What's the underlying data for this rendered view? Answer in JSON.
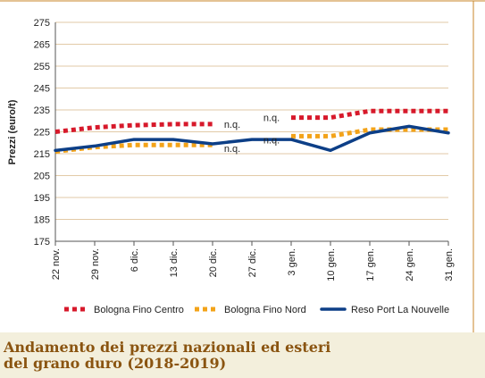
{
  "chart_data": {
    "type": "line",
    "title": "Andamento dei prezzi nazionali ed esteri del grano duro (2018-2019)",
    "title_lines": [
      "Andamento dei prezzi nazionali ed esteri",
      "del grano duro (2018-2019)"
    ],
    "ylabel": "Prezzi (euro/t)",
    "xlabel": "",
    "ylim": [
      175,
      275
    ],
    "yticks": [
      175,
      185,
      195,
      205,
      215,
      225,
      235,
      245,
      255,
      265,
      275
    ],
    "categories": [
      "22 nov.",
      "29 nov.",
      "6 dic.",
      "13 dic.",
      "20 dic.",
      "27 dic.",
      "3 gen.",
      "10 gen.",
      "17 gen.",
      "24 gen.",
      "31 gen."
    ],
    "grid": "horizontal",
    "legend_position": "bottom",
    "not_quoted_label": "n.q.",
    "series": [
      {
        "name": "Bologna Fino Centro",
        "color": "#d7192b",
        "style": "dotted",
        "values": [
          225,
          227,
          228,
          228.5,
          228.5,
          null,
          231.5,
          231.5,
          234.5,
          234.5,
          234.5
        ]
      },
      {
        "name": "Bologna Fino Nord",
        "color": "#f3a319",
        "style": "dotted",
        "values": [
          216,
          218,
          219,
          219,
          219,
          null,
          223,
          223,
          226,
          226,
          226
        ]
      },
      {
        "name": "Reso Port La Nouvelle",
        "color": "#0d3f87",
        "style": "solid",
        "values": [
          216.5,
          218.5,
          221.5,
          221.5,
          219.5,
          221.5,
          221.5,
          216.5,
          224.5,
          227.5,
          224.5
        ]
      }
    ]
  },
  "colors": {
    "caption_text": "#8a5410",
    "caption_background": "#f3efdc",
    "gridline": "#d9b98a",
    "frame_line": "#c8862a"
  }
}
